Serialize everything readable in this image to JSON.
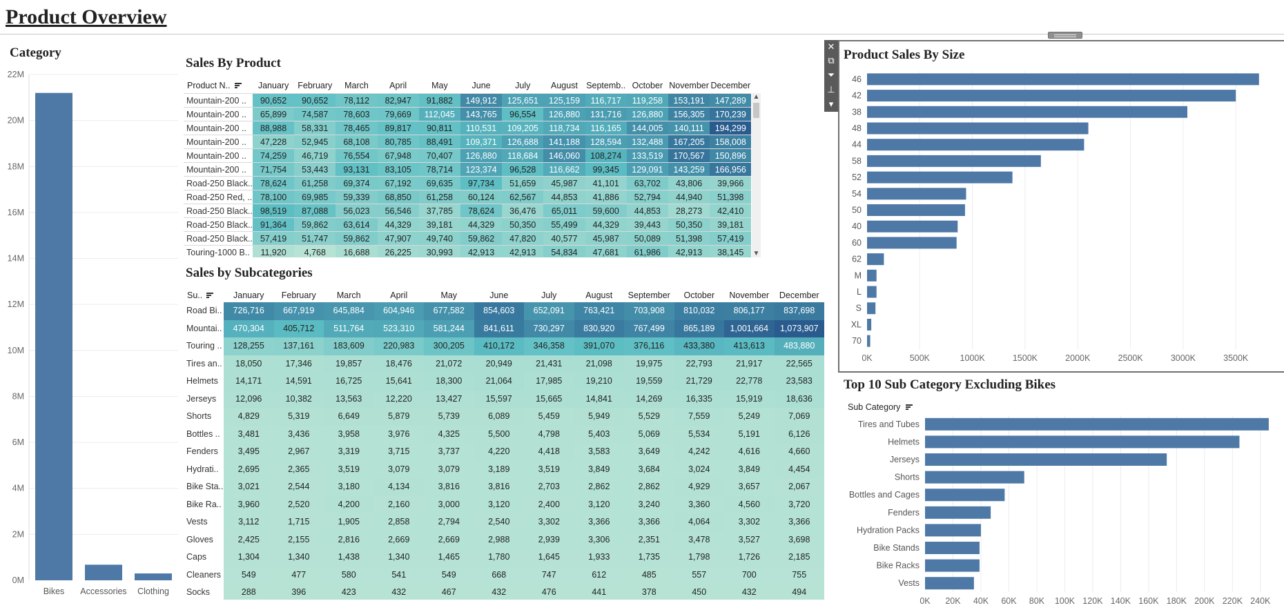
{
  "page_title": "Product Overview",
  "colors": {
    "bar": "#4e79a7",
    "heat_low": "#b7e3d5",
    "heat_mid": "#5bbdc3",
    "heat_high": "#2a5b8e"
  },
  "category_panel": {
    "title": "Category"
  },
  "product_table": {
    "title": "Sales By Product",
    "row_header": "Product N..",
    "columns": [
      "January",
      "February",
      "March",
      "April",
      "May",
      "June",
      "July",
      "August",
      "Septemb..",
      "October",
      "November",
      "December"
    ],
    "rows": [
      {
        "label": "Mountain-200 ..",
        "values": [
          "90,652",
          "90,652",
          "78,112",
          "82,947",
          "91,882",
          "149,912",
          "125,651",
          "125,159",
          "116,717",
          "119,258",
          "153,191",
          "147,289"
        ]
      },
      {
        "label": "Mountain-200 ..",
        "values": [
          "65,899",
          "74,587",
          "78,603",
          "79,669",
          "112,045",
          "143,765",
          "96,554",
          "126,880",
          "131,716",
          "126,880",
          "156,305",
          "170,239"
        ]
      },
      {
        "label": "Mountain-200 ..",
        "values": [
          "88,988",
          "58,331",
          "78,465",
          "89,817",
          "90,811",
          "110,531",
          "109,205",
          "118,734",
          "116,165",
          "144,005",
          "140,111",
          "194,299"
        ]
      },
      {
        "label": "Mountain-200 ..",
        "values": [
          "47,228",
          "52,945",
          "68,108",
          "80,785",
          "88,491",
          "109,371",
          "126,688",
          "141,188",
          "128,594",
          "132,488",
          "167,205",
          "158,008"
        ]
      },
      {
        "label": "Mountain-200 ..",
        "values": [
          "74,259",
          "46,719",
          "76,554",
          "67,948",
          "70,407",
          "126,880",
          "118,684",
          "146,060",
          "108,274",
          "133,519",
          "170,567",
          "150,896"
        ]
      },
      {
        "label": "Mountain-200 ..",
        "values": [
          "71,754",
          "53,443",
          "93,131",
          "83,105",
          "78,714",
          "123,374",
          "96,528",
          "116,662",
          "99,345",
          "129,091",
          "143,259",
          "166,956"
        ]
      },
      {
        "label": "Road-250 Black..",
        "values": [
          "78,624",
          "61,258",
          "69,374",
          "67,192",
          "69,635",
          "97,734",
          "51,659",
          "45,987",
          "41,101",
          "63,702",
          "43,806",
          "39,966"
        ]
      },
      {
        "label": "Road-250 Red, ..",
        "values": [
          "78,100",
          "69,985",
          "59,339",
          "68,850",
          "61,258",
          "60,124",
          "62,567",
          "44,853",
          "41,886",
          "52,794",
          "44,940",
          "51,398"
        ]
      },
      {
        "label": "Road-250 Black..",
        "values": [
          "98,519",
          "87,088",
          "56,023",
          "56,546",
          "37,785",
          "78,624",
          "36,476",
          "65,011",
          "59,600",
          "44,853",
          "28,273",
          "42,410"
        ]
      },
      {
        "label": "Road-250 Black..",
        "values": [
          "91,364",
          "59,862",
          "63,614",
          "44,329",
          "39,181",
          "44,329",
          "50,350",
          "55,499",
          "44,329",
          "39,443",
          "50,350",
          "39,181"
        ]
      },
      {
        "label": "Road-250 Black..",
        "values": [
          "57,419",
          "51,747",
          "59,862",
          "47,907",
          "49,740",
          "59,862",
          "47,820",
          "40,577",
          "45,987",
          "50,089",
          "51,398",
          "57,419"
        ]
      },
      {
        "label": "Touring-1000 B..",
        "values": [
          "11,920",
          "4,768",
          "16,688",
          "26,225",
          "30,993",
          "42,913",
          "42,913",
          "54,834",
          "47,681",
          "61,986",
          "42,913",
          "38,145"
        ]
      }
    ]
  },
  "subcat_table": {
    "title": "Sales by Subcategories",
    "row_header": "Su..",
    "columns": [
      "January",
      "February",
      "March",
      "April",
      "May",
      "June",
      "July",
      "August",
      "September",
      "October",
      "November",
      "December"
    ],
    "rows": [
      {
        "label": "Road Bi..",
        "values": [
          "726,716",
          "667,919",
          "645,884",
          "604,946",
          "677,582",
          "854,603",
          "652,091",
          "763,421",
          "703,908",
          "810,032",
          "806,177",
          "837,698"
        ]
      },
      {
        "label": "Mountai..",
        "values": [
          "470,304",
          "405,712",
          "511,764",
          "523,310",
          "581,244",
          "841,611",
          "730,297",
          "830,920",
          "767,499",
          "865,189",
          "1,001,664",
          "1,073,907"
        ]
      },
      {
        "label": "Touring ..",
        "values": [
          "128,255",
          "137,161",
          "183,609",
          "220,983",
          "300,205",
          "410,172",
          "346,358",
          "391,070",
          "376,116",
          "433,380",
          "413,613",
          "483,880"
        ]
      },
      {
        "label": "Tires an..",
        "values": [
          "18,050",
          "17,346",
          "19,857",
          "18,476",
          "21,072",
          "20,949",
          "21,431",
          "21,098",
          "19,975",
          "22,793",
          "21,917",
          "22,565"
        ]
      },
      {
        "label": "Helmets",
        "values": [
          "14,171",
          "14,591",
          "16,725",
          "15,641",
          "18,300",
          "21,064",
          "17,985",
          "19,210",
          "19,559",
          "21,729",
          "22,778",
          "23,583"
        ]
      },
      {
        "label": "Jerseys",
        "values": [
          "12,096",
          "10,382",
          "13,563",
          "12,220",
          "13,427",
          "15,597",
          "15,665",
          "14,841",
          "14,269",
          "16,335",
          "15,919",
          "18,636"
        ]
      },
      {
        "label": "Shorts",
        "values": [
          "4,829",
          "5,319",
          "6,649",
          "5,879",
          "5,739",
          "6,089",
          "5,459",
          "5,949",
          "5,529",
          "7,559",
          "5,249",
          "7,069"
        ]
      },
      {
        "label": "Bottles ..",
        "values": [
          "3,481",
          "3,436",
          "3,958",
          "3,976",
          "4,325",
          "5,500",
          "4,798",
          "5,403",
          "5,069",
          "5,534",
          "5,191",
          "6,126"
        ]
      },
      {
        "label": "Fenders",
        "values": [
          "3,495",
          "2,967",
          "3,319",
          "3,715",
          "3,737",
          "4,220",
          "4,418",
          "3,583",
          "3,649",
          "4,242",
          "4,616",
          "4,660"
        ]
      },
      {
        "label": "Hydrati..",
        "values": [
          "2,695",
          "2,365",
          "3,519",
          "3,079",
          "3,079",
          "3,189",
          "3,519",
          "3,849",
          "3,684",
          "3,024",
          "3,849",
          "4,454"
        ]
      },
      {
        "label": "Bike Sta..",
        "values": [
          "3,021",
          "2,544",
          "3,180",
          "4,134",
          "3,816",
          "3,816",
          "2,703",
          "2,862",
          "2,862",
          "4,929",
          "3,657",
          "2,067"
        ]
      },
      {
        "label": "Bike Ra..",
        "values": [
          "3,960",
          "2,520",
          "4,200",
          "2,160",
          "3,000",
          "3,120",
          "2,400",
          "3,120",
          "3,240",
          "3,360",
          "4,560",
          "3,720"
        ]
      },
      {
        "label": "Vests",
        "values": [
          "3,112",
          "1,715",
          "1,905",
          "2,858",
          "2,794",
          "2,540",
          "3,302",
          "3,366",
          "3,366",
          "4,064",
          "3,302",
          "3,366"
        ]
      },
      {
        "label": "Gloves",
        "values": [
          "2,425",
          "2,155",
          "2,816",
          "2,669",
          "2,669",
          "2,988",
          "2,939",
          "3,306",
          "2,351",
          "3,478",
          "3,527",
          "3,698"
        ]
      },
      {
        "label": "Caps",
        "values": [
          "1,304",
          "1,340",
          "1,438",
          "1,340",
          "1,465",
          "1,780",
          "1,645",
          "1,933",
          "1,735",
          "1,798",
          "1,726",
          "2,185"
        ]
      },
      {
        "label": "Cleaners",
        "values": [
          "549",
          "477",
          "580",
          "541",
          "549",
          "668",
          "747",
          "612",
          "485",
          "557",
          "700",
          "755"
        ]
      },
      {
        "label": "Socks",
        "values": [
          "288",
          "396",
          "423",
          "432",
          "467",
          "432",
          "476",
          "441",
          "378",
          "450",
          "432",
          "494"
        ]
      }
    ]
  },
  "size_panel": {
    "title": "Product Sales By Size"
  },
  "top10_panel": {
    "title": "Top 10 Sub Category Excluding Bikes",
    "axis_header": "Sub Category"
  },
  "toolbar": {
    "icons": [
      "close-icon",
      "popout-icon",
      "filter-icon",
      "pin-icon",
      "more-icon"
    ]
  },
  "chart_data": [
    {
      "id": "category",
      "type": "bar",
      "title": "Category",
      "categories": [
        "Bikes",
        "Accessories",
        "Clothing"
      ],
      "values": [
        21200000,
        680000,
        300000
      ],
      "ylim": [
        0,
        22000000
      ],
      "yticks": [
        0,
        2000000,
        4000000,
        6000000,
        8000000,
        10000000,
        12000000,
        14000000,
        16000000,
        18000000,
        20000000,
        22000000
      ],
      "ytick_labels": [
        "0M",
        "2M",
        "4M",
        "6M",
        "8M",
        "10M",
        "12M",
        "14M",
        "16M",
        "18M",
        "20M",
        "22M"
      ],
      "grid": true
    },
    {
      "id": "size",
      "type": "bar",
      "orientation": "horizontal",
      "title": "Product Sales By Size",
      "categories": [
        "46",
        "42",
        "38",
        "48",
        "44",
        "58",
        "52",
        "54",
        "50",
        "40",
        "60",
        "62",
        "M",
        "L",
        "S",
        "XL",
        "70"
      ],
      "values": [
        3720000,
        3500000,
        3040000,
        2100000,
        2060000,
        1650000,
        1380000,
        940000,
        930000,
        860000,
        850000,
        160000,
        90000,
        90000,
        80000,
        40000,
        30000
      ],
      "xlim": [
        0,
        3800000
      ],
      "xticks": [
        0,
        500000,
        1000000,
        1500000,
        2000000,
        2500000,
        3000000,
        3500000
      ],
      "xtick_labels": [
        "0K",
        "500K",
        "1000K",
        "1500K",
        "2000K",
        "2500K",
        "3000K",
        "3500K"
      ],
      "grid": true
    },
    {
      "id": "top10",
      "type": "bar",
      "orientation": "horizontal",
      "title": "Top 10 Sub Category Excluding Bikes",
      "categories": [
        "Tires and Tubes",
        "Helmets",
        "Jerseys",
        "Shorts",
        "Bottles and Cages",
        "Fenders",
        "Hydration Packs",
        "Bike Stands",
        "Bike Racks",
        "Vests"
      ],
      "values": [
        246000,
        225000,
        173000,
        71000,
        57000,
        47000,
        40000,
        39000,
        39000,
        35000
      ],
      "xlim": [
        0,
        248000
      ],
      "xticks": [
        0,
        20000,
        40000,
        60000,
        80000,
        100000,
        120000,
        140000,
        160000,
        180000,
        200000,
        220000,
        240000
      ],
      "xtick_labels": [
        "0K",
        "20K",
        "40K",
        "60K",
        "80K",
        "100K",
        "120K",
        "140K",
        "160K",
        "180K",
        "200K",
        "220K",
        "240K"
      ],
      "grid": true
    }
  ]
}
